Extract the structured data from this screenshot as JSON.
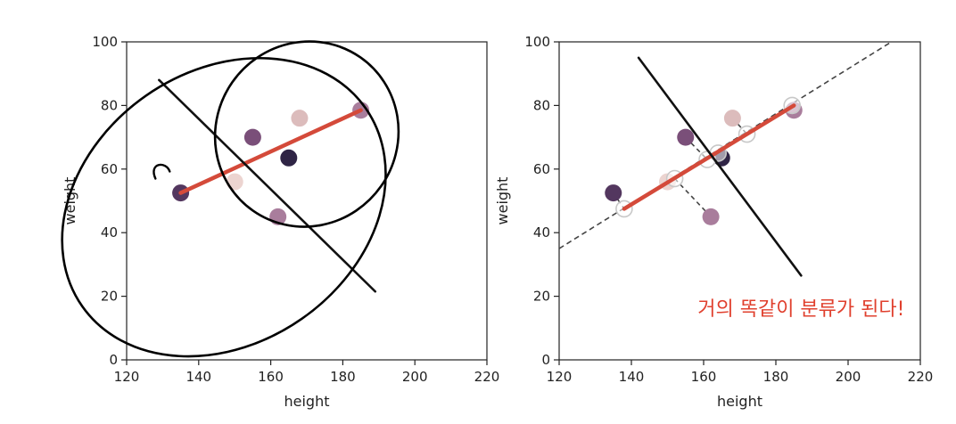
{
  "colors": {
    "pc_line": "#d44a3a",
    "boundary": "#111111",
    "projection": "#444444",
    "note": "#e0402e",
    "point_dark": "#2f2445",
    "point_mid_dark": "#53375f",
    "point_mid": "#7a4f79",
    "point_light_mid": "#a97d9c",
    "point_light": "#dcbcbc",
    "point_lightest": "#ecd4d0"
  },
  "chart_data": [
    {
      "type": "scatter",
      "xlabel": "height",
      "ylabel": "weight",
      "xlim": [
        120,
        220
      ],
      "ylim": [
        0,
        100
      ],
      "xticks": [
        "120",
        "140",
        "160",
        "180",
        "200",
        "220"
      ],
      "yticks": [
        "0",
        "20",
        "40",
        "60",
        "80",
        "100"
      ],
      "grid": false,
      "points": [
        {
          "x": 135,
          "y": 52.5,
          "color": "#53375f"
        },
        {
          "x": 150,
          "y": 56,
          "color": "#ecd4d0"
        },
        {
          "x": 155,
          "y": 70,
          "color": "#7a4f79"
        },
        {
          "x": 162,
          "y": 45,
          "color": "#a97d9c"
        },
        {
          "x": 165,
          "y": 63.5,
          "color": "#2f2445"
        },
        {
          "x": 168,
          "y": 76,
          "color": "#dcbcbc"
        },
        {
          "x": 185,
          "y": 78.5,
          "color": "#a97d9c"
        }
      ],
      "principal_component": {
        "x": [
          135,
          185
        ],
        "y": [
          52.5,
          78.5
        ]
      },
      "decision_boundary": {
        "x": [
          129,
          189
        ],
        "y": [
          88,
          21.5
        ]
      },
      "annotations": {
        "clusters": [
          {
            "cx": 147,
            "cy": 48,
            "rx": 48,
            "ry": 18,
            "angle_deg": -35
          },
          {
            "cx": 170,
            "cy": 71,
            "rx": 26,
            "ry": 12,
            "angle_deg": -55
          }
        ]
      }
    },
    {
      "type": "scatter",
      "xlabel": "height",
      "ylabel": "weight",
      "xlim": [
        120,
        220
      ],
      "ylim": [
        0,
        100
      ],
      "xticks": [
        "120",
        "140",
        "160",
        "180",
        "200",
        "220"
      ],
      "yticks": [
        "0",
        "20",
        "40",
        "60",
        "80",
        "100"
      ],
      "grid": false,
      "points": [
        {
          "x": 135,
          "y": 52.5,
          "color": "#53375f"
        },
        {
          "x": 150,
          "y": 56,
          "color": "#ecd4d0"
        },
        {
          "x": 155,
          "y": 70,
          "color": "#7a4f79"
        },
        {
          "x": 162,
          "y": 45,
          "color": "#a97d9c"
        },
        {
          "x": 165,
          "y": 63.5,
          "color": "#2f2445"
        },
        {
          "x": 168,
          "y": 76,
          "color": "#dcbcbc"
        },
        {
          "x": 185,
          "y": 78.5,
          "color": "#a97d9c"
        }
      ],
      "projected_points": [
        {
          "x": 138,
          "y": 47.5
        },
        {
          "x": 152,
          "y": 57
        },
        {
          "x": 161,
          "y": 63
        },
        {
          "x": 164,
          "y": 65
        },
        {
          "x": 172,
          "y": 71
        },
        {
          "x": 184.5,
          "y": 80
        }
      ],
      "projections": [
        {
          "from": [
            135,
            52.5
          ],
          "to": [
            138,
            47.5
          ]
        },
        {
          "from": [
            162,
            45
          ],
          "to": [
            152,
            57
          ]
        },
        {
          "from": [
            155,
            70
          ],
          "to": [
            161,
            63
          ]
        },
        {
          "from": [
            168,
            76
          ],
          "to": [
            172,
            71
          ]
        }
      ],
      "pc_axis": {
        "x": [
          120,
          212
        ],
        "y": [
          35,
          100
        ]
      },
      "principal_component": {
        "x": [
          138,
          185
        ],
        "y": [
          47.5,
          80
        ]
      },
      "decision_boundary": {
        "x": [
          142,
          187
        ],
        "y": [
          95,
          26.5
        ]
      },
      "annotation_text": "거의 똑같이 분류가 된다!",
      "annotation_pos": {
        "x": 187,
        "y": 14
      }
    }
  ]
}
